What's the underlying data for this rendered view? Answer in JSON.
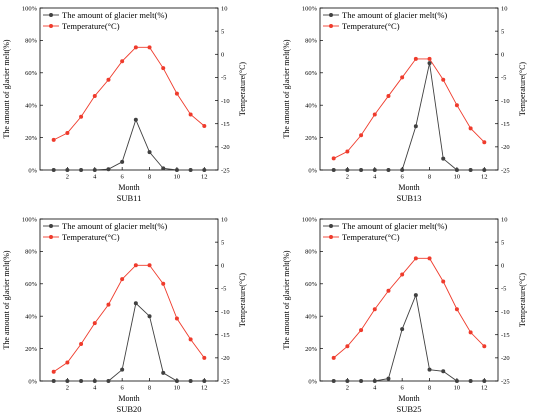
{
  "chart_data": [
    {
      "type": "line",
      "title": "SUB11",
      "xlabel": "Month",
      "ylabel_left": "The amount of glacier melt(%)",
      "ylabel_right": "Temperature(°C)",
      "x_ticks": [
        "2",
        "4",
        "6",
        "8",
        "10",
        "12"
      ],
      "y_left_ticks": [
        "0%",
        "20%",
        "40%",
        "60%",
        "80%",
        "100%"
      ],
      "y_right_ticks": [
        "-25",
        "-20",
        "-15",
        "-10",
        "-5",
        "0",
        "5",
        "10"
      ],
      "xlim": [
        0,
        13
      ],
      "ylim_left": [
        0,
        100
      ],
      "ylim_right": [
        -25,
        10
      ],
      "legend_position": "top-left",
      "x": [
        1,
        2,
        3,
        4,
        5,
        6,
        7,
        8,
        9,
        10,
        11,
        12
      ],
      "series": [
        {
          "name": "The amount of glacier melt(%)",
          "axis": "left",
          "color": "#404040",
          "values": [
            0,
            0,
            0,
            0,
            0.5,
            5,
            31,
            11,
            1,
            0,
            0,
            0
          ]
        },
        {
          "name": "Temperature(°C)",
          "axis": "right",
          "color": "#ef3b2c",
          "values": [
            -18.5,
            -17,
            -13.5,
            -9,
            -5.5,
            -1.5,
            1.5,
            1.5,
            -3,
            -8.5,
            -13,
            -15.5
          ]
        }
      ]
    },
    {
      "type": "line",
      "title": "SUB13",
      "xlabel": "Month",
      "ylabel_left": "The amount of glacier melt(%)",
      "ylabel_right": "Temperature(°C)",
      "x_ticks": [
        "2",
        "4",
        "6",
        "8",
        "10",
        "12"
      ],
      "y_left_ticks": [
        "0%",
        "20%",
        "40%",
        "60%",
        "80%",
        "100%"
      ],
      "y_right_ticks": [
        "-25",
        "-20",
        "-15",
        "-10",
        "-5",
        "0",
        "5",
        "10"
      ],
      "xlim": [
        0,
        13
      ],
      "ylim_left": [
        0,
        100
      ],
      "ylim_right": [
        -25,
        10
      ],
      "legend_position": "top-left",
      "x": [
        1,
        2,
        3,
        4,
        5,
        6,
        7,
        8,
        9,
        10,
        11,
        12
      ],
      "series": [
        {
          "name": "The amount of glacier melt(%)",
          "axis": "left",
          "color": "#404040",
          "values": [
            0,
            0,
            0,
            0,
            0,
            0,
            27,
            66,
            7,
            0,
            0,
            0
          ]
        },
        {
          "name": "Temperature(°C)",
          "axis": "right",
          "color": "#ef3b2c",
          "values": [
            -22.5,
            -21,
            -17.5,
            -13,
            -9,
            -5,
            -1,
            -1,
            -5.5,
            -11,
            -16,
            -19
          ]
        }
      ]
    },
    {
      "type": "line",
      "title": "SUB20",
      "xlabel": "Month",
      "ylabel_left": "The amount of glacier melt(%)",
      "ylabel_right": "Temperature(°C)",
      "x_ticks": [
        "2",
        "4",
        "6",
        "8",
        "10",
        "12"
      ],
      "y_left_ticks": [
        "0%",
        "20%",
        "40%",
        "60%",
        "80%",
        "100%"
      ],
      "y_right_ticks": [
        "-25",
        "-20",
        "-15",
        "-10",
        "-5",
        "0",
        "5",
        "10"
      ],
      "xlim": [
        0,
        13
      ],
      "ylim_left": [
        0,
        100
      ],
      "ylim_right": [
        -25,
        10
      ],
      "legend_position": "top-left",
      "x": [
        1,
        2,
        3,
        4,
        5,
        6,
        7,
        8,
        9,
        10,
        11,
        12
      ],
      "series": [
        {
          "name": "The amount of glacier melt(%)",
          "axis": "left",
          "color": "#404040",
          "values": [
            0,
            0,
            0,
            0,
            0,
            7,
            48,
            40,
            5,
            0,
            0,
            0
          ]
        },
        {
          "name": "Temperature(°C)",
          "axis": "right",
          "color": "#ef3b2c",
          "values": [
            -23,
            -21,
            -17,
            -12.5,
            -8.5,
            -3,
            0,
            0,
            -4,
            -11.5,
            -16,
            -20
          ]
        }
      ]
    },
    {
      "type": "line",
      "title": "SUB25",
      "xlabel": "Month",
      "ylabel_left": "The amount of glacier melt(%)",
      "ylabel_right": "Temperature(°C)",
      "x_ticks": [
        "2",
        "4",
        "6",
        "8",
        "10",
        "12"
      ],
      "y_left_ticks": [
        "0%",
        "20%",
        "40%",
        "60%",
        "80%",
        "100%"
      ],
      "y_right_ticks": [
        "-25",
        "-20",
        "-15",
        "-10",
        "-5",
        "0",
        "5",
        "10"
      ],
      "xlim": [
        0,
        13
      ],
      "ylim_left": [
        0,
        100
      ],
      "ylim_right": [
        -25,
        10
      ],
      "legend_position": "top-left",
      "x": [
        1,
        2,
        3,
        4,
        5,
        6,
        7,
        8,
        9,
        10,
        11,
        12
      ],
      "series": [
        {
          "name": "The amount of glacier melt(%)",
          "axis": "left",
          "color": "#404040",
          "values": [
            0,
            0,
            0,
            0,
            1.5,
            32,
            53,
            7,
            6,
            0,
            0,
            0
          ]
        },
        {
          "name": "Temperature(°C)",
          "axis": "right",
          "color": "#ef3b2c",
          "values": [
            -20,
            -17.5,
            -14,
            -9.5,
            -5.5,
            -2,
            1.5,
            1.5,
            -3.5,
            -9.5,
            -14.5,
            -17.5
          ]
        }
      ]
    }
  ]
}
